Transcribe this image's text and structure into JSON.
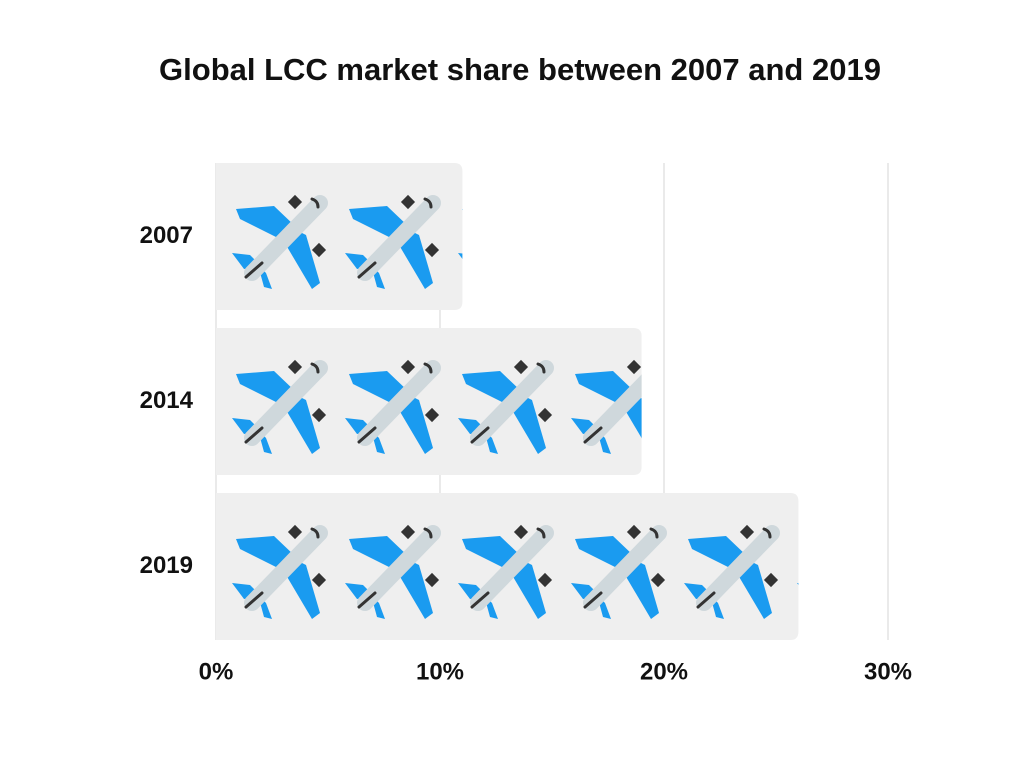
{
  "chart_data": {
    "type": "pictograph-bar",
    "title": "Global LCC market share between 2007 and 2019",
    "categories": [
      "2007",
      "2014",
      "2019"
    ],
    "values": [
      11,
      19,
      26
    ],
    "color": "#efefef",
    "xlim": [
      0,
      30
    ],
    "xticks": [
      {
        "value": 0,
        "label": "0%"
      },
      {
        "value": 10,
        "label": "10%"
      },
      {
        "value": 20,
        "label": "20%"
      },
      {
        "value": 30,
        "label": "30%"
      }
    ],
    "grid": true
  }
}
